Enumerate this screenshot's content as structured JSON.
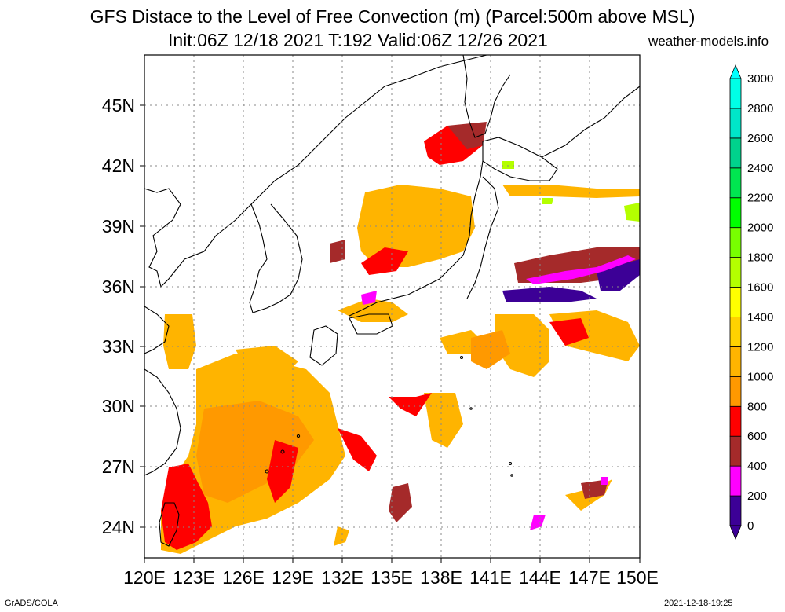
{
  "title": {
    "line1": "GFS Distace to the Level of Free Convection (m) (Parcel:500m above MSL)",
    "line2": "Init:06Z 12/18 2021 T:192 Valid:06Z 12/26 2021",
    "site": "weather-models.info"
  },
  "map": {
    "lon_range": [
      120,
      150
    ],
    "lat_range": [
      22.5,
      47.5
    ],
    "lon_ticks": [
      "120E",
      "123E",
      "126E",
      "129E",
      "132E",
      "135E",
      "138E",
      "141E",
      "144E",
      "147E",
      "150E"
    ],
    "lat_ticks": [
      "24N",
      "27N",
      "30N",
      "33N",
      "36N",
      "39N",
      "42N",
      "45N"
    ],
    "gridlines": "dotted"
  },
  "colorbar": {
    "levels": [
      "0",
      "200",
      "400",
      "600",
      "800",
      "1000",
      "1200",
      "1400",
      "1600",
      "1800",
      "2000",
      "2200",
      "2400",
      "2600",
      "2800",
      "3000"
    ],
    "colors": [
      "#3c0096",
      "#ff00ff",
      "#a52a2a",
      "#ff0000",
      "#ff9900",
      "#ffb400",
      "#ffd200",
      "#ffff00",
      "#b4ff00",
      "#78ff00",
      "#00ff00",
      "#00e650",
      "#00d28c",
      "#00e6c8",
      "#00ffe6",
      "#00ffff"
    ]
  },
  "footer": {
    "credit": "GrADS/COLA",
    "timestamp": "2021-12-18-19:25"
  }
}
